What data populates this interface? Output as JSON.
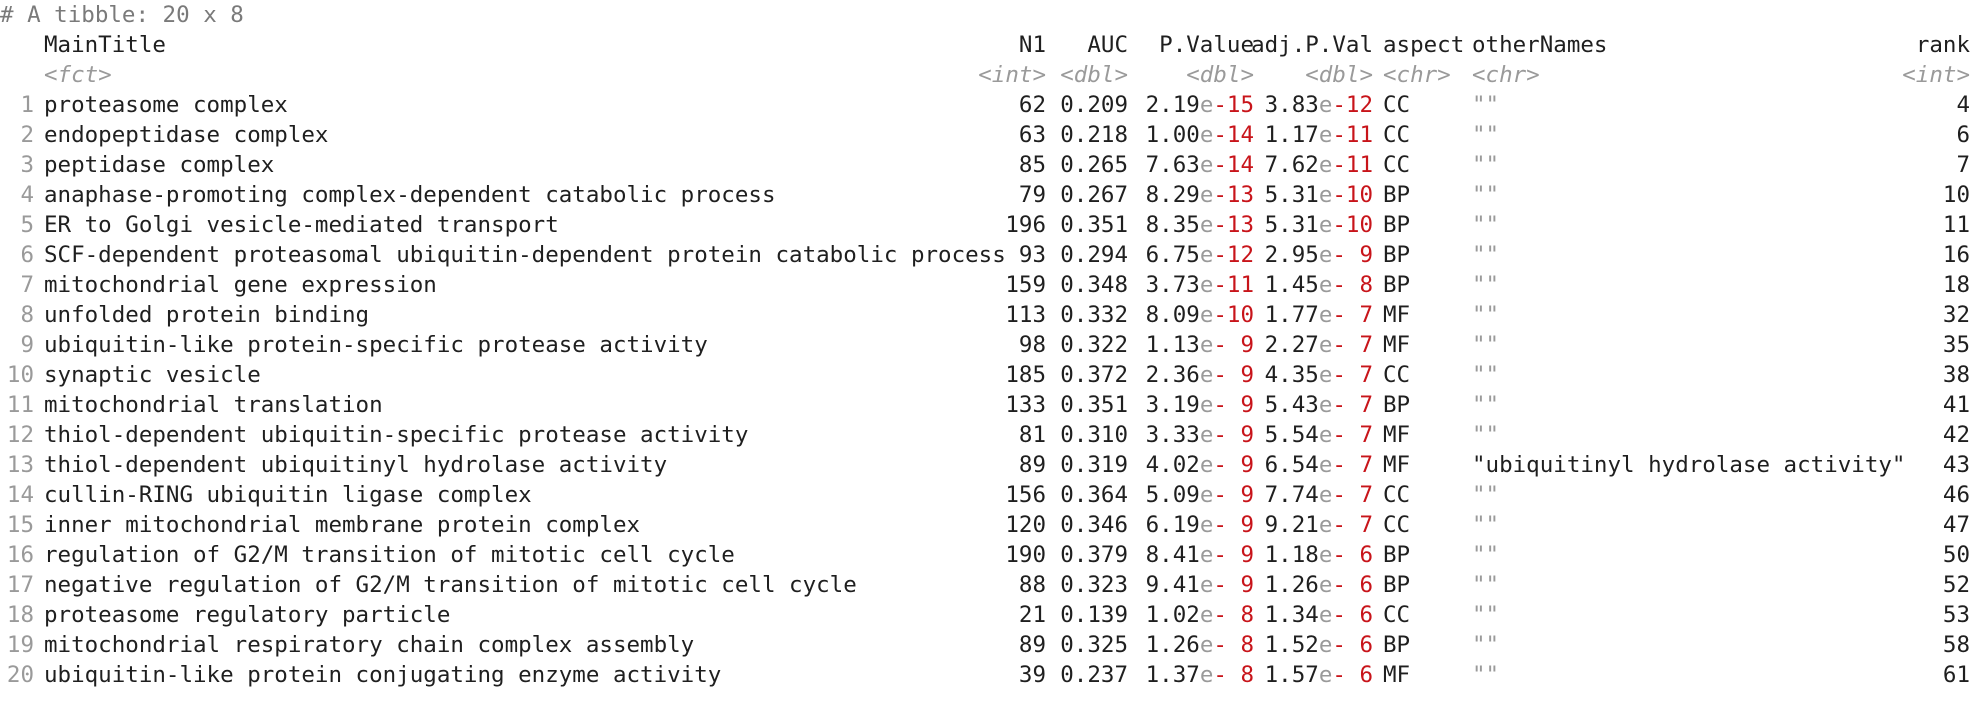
{
  "console": {
    "comment": "# A tibble: 20 x 8",
    "columns": {
      "main": "MainTitle",
      "n1": "N1",
      "auc": "AUC",
      "pval": "P.Value",
      "adj": "adj.P.Val",
      "aspect": "aspect",
      "other": "otherNames",
      "rank": "rank"
    },
    "types": {
      "main": "<fct>",
      "n1": "<int>",
      "auc": "<dbl>",
      "pval": "<dbl>",
      "adj": "<dbl>",
      "aspect": "<chr>",
      "other": "<chr>",
      "rank": "<int>"
    },
    "rows": [
      {
        "n": "1",
        "title": "proteasome complex",
        "n1": "62",
        "auc": "0.209",
        "p_mant": "2.19",
        "p_exp": "-15",
        "a_mant": "3.83",
        "a_exp": "-12",
        "aspect": "CC",
        "other": "\"\"",
        "rank": "4"
      },
      {
        "n": "2",
        "title": "endopeptidase complex",
        "n1": "63",
        "auc": "0.218",
        "p_mant": "1.00",
        "p_exp": "-14",
        "a_mant": "1.17",
        "a_exp": "-11",
        "aspect": "CC",
        "other": "\"\"",
        "rank": "6"
      },
      {
        "n": "3",
        "title": "peptidase complex",
        "n1": "85",
        "auc": "0.265",
        "p_mant": "7.63",
        "p_exp": "-14",
        "a_mant": "7.62",
        "a_exp": "-11",
        "aspect": "CC",
        "other": "\"\"",
        "rank": "7"
      },
      {
        "n": "4",
        "title": "anaphase-promoting complex-dependent catabolic process",
        "n1": "79",
        "auc": "0.267",
        "p_mant": "8.29",
        "p_exp": "-13",
        "a_mant": "5.31",
        "a_exp": "-10",
        "aspect": "BP",
        "other": "\"\"",
        "rank": "10"
      },
      {
        "n": "5",
        "title": "ER to Golgi vesicle-mediated transport",
        "n1": "196",
        "auc": "0.351",
        "p_mant": "8.35",
        "p_exp": "-13",
        "a_mant": "5.31",
        "a_exp": "-10",
        "aspect": "BP",
        "other": "\"\"",
        "rank": "11"
      },
      {
        "n": "6",
        "title": "SCF-dependent proteasomal ubiquitin-dependent protein catabolic process",
        "n1": "93",
        "auc": "0.294",
        "p_mant": "6.75",
        "p_exp": "-12",
        "a_mant": "2.95",
        "a_exp": "- 9",
        "aspect": "BP",
        "other": "\"\"",
        "rank": "16"
      },
      {
        "n": "7",
        "title": "mitochondrial gene expression",
        "n1": "159",
        "auc": "0.348",
        "p_mant": "3.73",
        "p_exp": "-11",
        "a_mant": "1.45",
        "a_exp": "- 8",
        "aspect": "BP",
        "other": "\"\"",
        "rank": "18"
      },
      {
        "n": "8",
        "title": "unfolded protein binding",
        "n1": "113",
        "auc": "0.332",
        "p_mant": "8.09",
        "p_exp": "-10",
        "a_mant": "1.77",
        "a_exp": "- 7",
        "aspect": "MF",
        "other": "\"\"",
        "rank": "32"
      },
      {
        "n": "9",
        "title": "ubiquitin-like protein-specific protease activity",
        "n1": "98",
        "auc": "0.322",
        "p_mant": "1.13",
        "p_exp": "- 9",
        "a_mant": "2.27",
        "a_exp": "- 7",
        "aspect": "MF",
        "other": "\"\"",
        "rank": "35"
      },
      {
        "n": "10",
        "title": "synaptic vesicle",
        "n1": "185",
        "auc": "0.372",
        "p_mant": "2.36",
        "p_exp": "- 9",
        "a_mant": "4.35",
        "a_exp": "- 7",
        "aspect": "CC",
        "other": "\"\"",
        "rank": "38"
      },
      {
        "n": "11",
        "title": "mitochondrial translation",
        "n1": "133",
        "auc": "0.351",
        "p_mant": "3.19",
        "p_exp": "- 9",
        "a_mant": "5.43",
        "a_exp": "- 7",
        "aspect": "BP",
        "other": "\"\"",
        "rank": "41"
      },
      {
        "n": "12",
        "title": "thiol-dependent ubiquitin-specific protease activity",
        "n1": "81",
        "auc": "0.310",
        "p_mant": "3.33",
        "p_exp": "- 9",
        "a_mant": "5.54",
        "a_exp": "- 7",
        "aspect": "MF",
        "other": "\"\"",
        "rank": "42"
      },
      {
        "n": "13",
        "title": "thiol-dependent ubiquitinyl hydrolase activity",
        "n1": "89",
        "auc": "0.319",
        "p_mant": "4.02",
        "p_exp": "- 9",
        "a_mant": "6.54",
        "a_exp": "- 7",
        "aspect": "MF",
        "other": "\"ubiquitinyl hydrolase activity\"",
        "rank": "43"
      },
      {
        "n": "14",
        "title": "cullin-RING ubiquitin ligase complex",
        "n1": "156",
        "auc": "0.364",
        "p_mant": "5.09",
        "p_exp": "- 9",
        "a_mant": "7.74",
        "a_exp": "- 7",
        "aspect": "CC",
        "other": "\"\"",
        "rank": "46"
      },
      {
        "n": "15",
        "title": "inner mitochondrial membrane protein complex",
        "n1": "120",
        "auc": "0.346",
        "p_mant": "6.19",
        "p_exp": "- 9",
        "a_mant": "9.21",
        "a_exp": "- 7",
        "aspect": "CC",
        "other": "\"\"",
        "rank": "47"
      },
      {
        "n": "16",
        "title": "regulation of G2/M transition of mitotic cell cycle",
        "n1": "190",
        "auc": "0.379",
        "p_mant": "8.41",
        "p_exp": "- 9",
        "a_mant": "1.18",
        "a_exp": "- 6",
        "aspect": "BP",
        "other": "\"\"",
        "rank": "50"
      },
      {
        "n": "17",
        "title": "negative regulation of G2/M transition of mitotic cell cycle",
        "n1": "88",
        "auc": "0.323",
        "p_mant": "9.41",
        "p_exp": "- 9",
        "a_mant": "1.26",
        "a_exp": "- 6",
        "aspect": "BP",
        "other": "\"\"",
        "rank": "52"
      },
      {
        "n": "18",
        "title": "proteasome regulatory particle",
        "n1": "21",
        "auc": "0.139",
        "p_mant": "1.02",
        "p_exp": "- 8",
        "a_mant": "1.34",
        "a_exp": "- 6",
        "aspect": "CC",
        "other": "\"\"",
        "rank": "53"
      },
      {
        "n": "19",
        "title": "mitochondrial respiratory chain complex assembly",
        "n1": "89",
        "auc": "0.325",
        "p_mant": "1.26",
        "p_exp": "- 8",
        "a_mant": "1.52",
        "a_exp": "- 6",
        "aspect": "BP",
        "other": "\"\"",
        "rank": "58"
      },
      {
        "n": "20",
        "title": "ubiquitin-like protein conjugating enzyme activity",
        "n1": "39",
        "auc": "0.237",
        "p_mant": "1.37",
        "p_exp": "- 8",
        "a_mant": "1.57",
        "a_exp": "- 6",
        "aspect": "MF",
        "other": "\"\"",
        "rank": "61"
      }
    ]
  }
}
